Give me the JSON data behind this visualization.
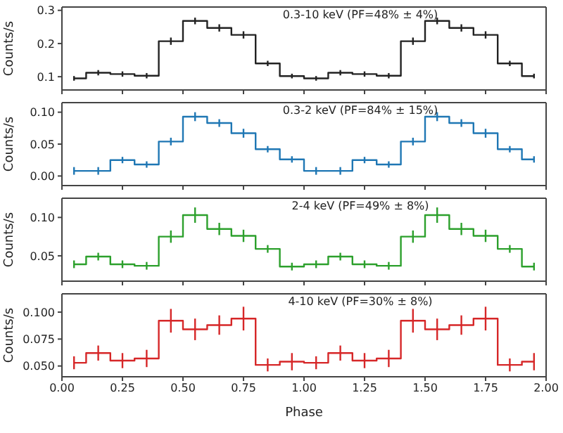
{
  "chart_data": [
    {
      "type": "step",
      "title": "0.3-10 keV (PF=48% ± 4%)",
      "ylabel": "Counts/s",
      "x": [
        0.05,
        0.15,
        0.25,
        0.35,
        0.45,
        0.55,
        0.65,
        0.75,
        0.85,
        0.95,
        1.05,
        1.15,
        1.25,
        1.35,
        1.45,
        1.55,
        1.65,
        1.75,
        1.85,
        1.95
      ],
      "series": [
        {
          "color": "#222222",
          "values": [
            0.095,
            0.112,
            0.108,
            0.103,
            0.207,
            0.268,
            0.247,
            0.226,
            0.14,
            0.102,
            0.095,
            0.112,
            0.108,
            0.103,
            0.207,
            0.268,
            0.247,
            0.226,
            0.14,
            0.102
          ],
          "errors": [
            0.007,
            0.008,
            0.008,
            0.008,
            0.011,
            0.01,
            0.011,
            0.011,
            0.008,
            0.007,
            0.007,
            0.008,
            0.008,
            0.008,
            0.011,
            0.01,
            0.011,
            0.011,
            0.008,
            0.007
          ]
        }
      ],
      "xlim": [
        0,
        2
      ],
      "xticks": [
        {
          "value": 0,
          "label": null
        },
        {
          "value": 0.25,
          "label": null
        },
        {
          "value": 0.5,
          "label": null
        },
        {
          "value": 0.75,
          "label": null
        },
        {
          "value": 1,
          "label": null
        },
        {
          "value": 1.25,
          "label": null
        },
        {
          "value": 1.5,
          "label": null
        },
        {
          "value": 1.75,
          "label": null
        },
        {
          "value": 2,
          "label": null
        }
      ],
      "ylim": [
        0.06,
        0.31
      ],
      "yticks": [
        0.1,
        0.2,
        0.3
      ],
      "tick_labels": "y"
    },
    {
      "type": "step",
      "title": "0.3-2 keV (PF=84% ± 15%)",
      "ylabel": "Counts/s",
      "x": [
        0.05,
        0.15,
        0.25,
        0.35,
        0.45,
        0.55,
        0.65,
        0.75,
        0.85,
        0.95,
        1.05,
        1.15,
        1.25,
        1.35,
        1.45,
        1.55,
        1.65,
        1.75,
        1.85,
        1.95
      ],
      "series": [
        {
          "color": "#1f77b4",
          "values": [
            0.008,
            0.008,
            0.025,
            0.018,
            0.054,
            0.093,
            0.083,
            0.067,
            0.042,
            0.026,
            0.008,
            0.008,
            0.025,
            0.018,
            0.054,
            0.093,
            0.083,
            0.067,
            0.042,
            0.026
          ],
          "errors": [
            0.006,
            0.006,
            0.005,
            0.005,
            0.006,
            0.007,
            0.006,
            0.007,
            0.005,
            0.005,
            0.006,
            0.006,
            0.005,
            0.005,
            0.006,
            0.007,
            0.006,
            0.007,
            0.005,
            0.005
          ]
        }
      ],
      "xlim": [
        0,
        2
      ],
      "xticks": [
        {
          "value": 0,
          "label": null
        },
        {
          "value": 0.25,
          "label": null
        },
        {
          "value": 0.5,
          "label": null
        },
        {
          "value": 0.75,
          "label": null
        },
        {
          "value": 1,
          "label": null
        },
        {
          "value": 1.25,
          "label": null
        },
        {
          "value": 1.5,
          "label": null
        },
        {
          "value": 1.75,
          "label": null
        },
        {
          "value": 2,
          "label": null
        }
      ],
      "ylim": [
        -0.015,
        0.115
      ],
      "yticks": [
        {
          "value": 0,
          "label": "0.00"
        },
        {
          "value": 0.05,
          "label": "0.05"
        },
        {
          "value": 0.1,
          "label": "0.10"
        }
      ],
      "tick_labels": "y"
    },
    {
      "type": "step",
      "title": "2-4 keV (PF=49% ± 8%)",
      "ylabel": "Counts/s",
      "x": [
        0.05,
        0.15,
        0.25,
        0.35,
        0.45,
        0.55,
        0.65,
        0.75,
        0.85,
        0.95,
        1.05,
        1.15,
        1.25,
        1.35,
        1.45,
        1.55,
        1.65,
        1.75,
        1.85,
        1.95
      ],
      "series": [
        {
          "color": "#2ca02c",
          "values": [
            0.039,
            0.049,
            0.039,
            0.037,
            0.075,
            0.103,
            0.085,
            0.076,
            0.059,
            0.036,
            0.039,
            0.049,
            0.039,
            0.037,
            0.075,
            0.103,
            0.085,
            0.076,
            0.059,
            0.036
          ],
          "errors": [
            0.005,
            0.005,
            0.005,
            0.005,
            0.008,
            0.01,
            0.008,
            0.008,
            0.005,
            0.005,
            0.005,
            0.005,
            0.005,
            0.005,
            0.008,
            0.01,
            0.008,
            0.008,
            0.005,
            0.005
          ]
        }
      ],
      "xlim": [
        0,
        2
      ],
      "xticks": [
        {
          "value": 0,
          "label": null
        },
        {
          "value": 0.25,
          "label": null
        },
        {
          "value": 0.5,
          "label": null
        },
        {
          "value": 0.75,
          "label": null
        },
        {
          "value": 1,
          "label": null
        },
        {
          "value": 1.25,
          "label": null
        },
        {
          "value": 1.5,
          "label": null
        },
        {
          "value": 1.75,
          "label": null
        },
        {
          "value": 2,
          "label": null
        }
      ],
      "ylim": [
        0.017,
        0.125
      ],
      "yticks": [
        {
          "value": 0.05,
          "label": "0.05"
        },
        {
          "value": 0.1,
          "label": "0.10"
        }
      ],
      "tick_labels": "y"
    },
    {
      "type": "step",
      "title": "4-10 keV (PF=30% ± 8%)",
      "ylabel": "Counts/s",
      "xlabel": "Phase",
      "x": [
        0.05,
        0.15,
        0.25,
        0.35,
        0.45,
        0.55,
        0.65,
        0.75,
        0.85,
        0.95,
        1.05,
        1.15,
        1.25,
        1.35,
        1.45,
        1.55,
        1.65,
        1.75,
        1.85,
        1.95
      ],
      "series": [
        {
          "color": "#d62728",
          "values": [
            0.053,
            0.062,
            0.055,
            0.057,
            0.092,
            0.084,
            0.088,
            0.094,
            0.051,
            0.054,
            0.053,
            0.062,
            0.055,
            0.057,
            0.092,
            0.084,
            0.088,
            0.094,
            0.051,
            0.054
          ],
          "errors": [
            0.006,
            0.007,
            0.007,
            0.008,
            0.011,
            0.01,
            0.009,
            0.011,
            0.006,
            0.008,
            0.006,
            0.007,
            0.007,
            0.008,
            0.011,
            0.01,
            0.009,
            0.011,
            0.006,
            0.008
          ]
        }
      ],
      "xlim": [
        0,
        2
      ],
      "xticks": [
        {
          "value": 0,
          "label": "0.00"
        },
        {
          "value": 0.25,
          "label": "0.25"
        },
        {
          "value": 0.5,
          "label": "0.50"
        },
        {
          "value": 0.75,
          "label": "0.75"
        },
        {
          "value": 1,
          "label": "1.00"
        },
        {
          "value": 1.25,
          "label": "1.25"
        },
        {
          "value": 1.5,
          "label": "1.50"
        },
        {
          "value": 1.75,
          "label": "1.75"
        },
        {
          "value": 2,
          "label": "2.00"
        }
      ],
      "ylim": [
        0.04,
        0.117
      ],
      "yticks": [
        {
          "value": 0.05,
          "label": "0.050"
        },
        {
          "value": 0.075,
          "label": "0.075"
        },
        {
          "value": 0.1,
          "label": "0.100"
        }
      ]
    }
  ]
}
